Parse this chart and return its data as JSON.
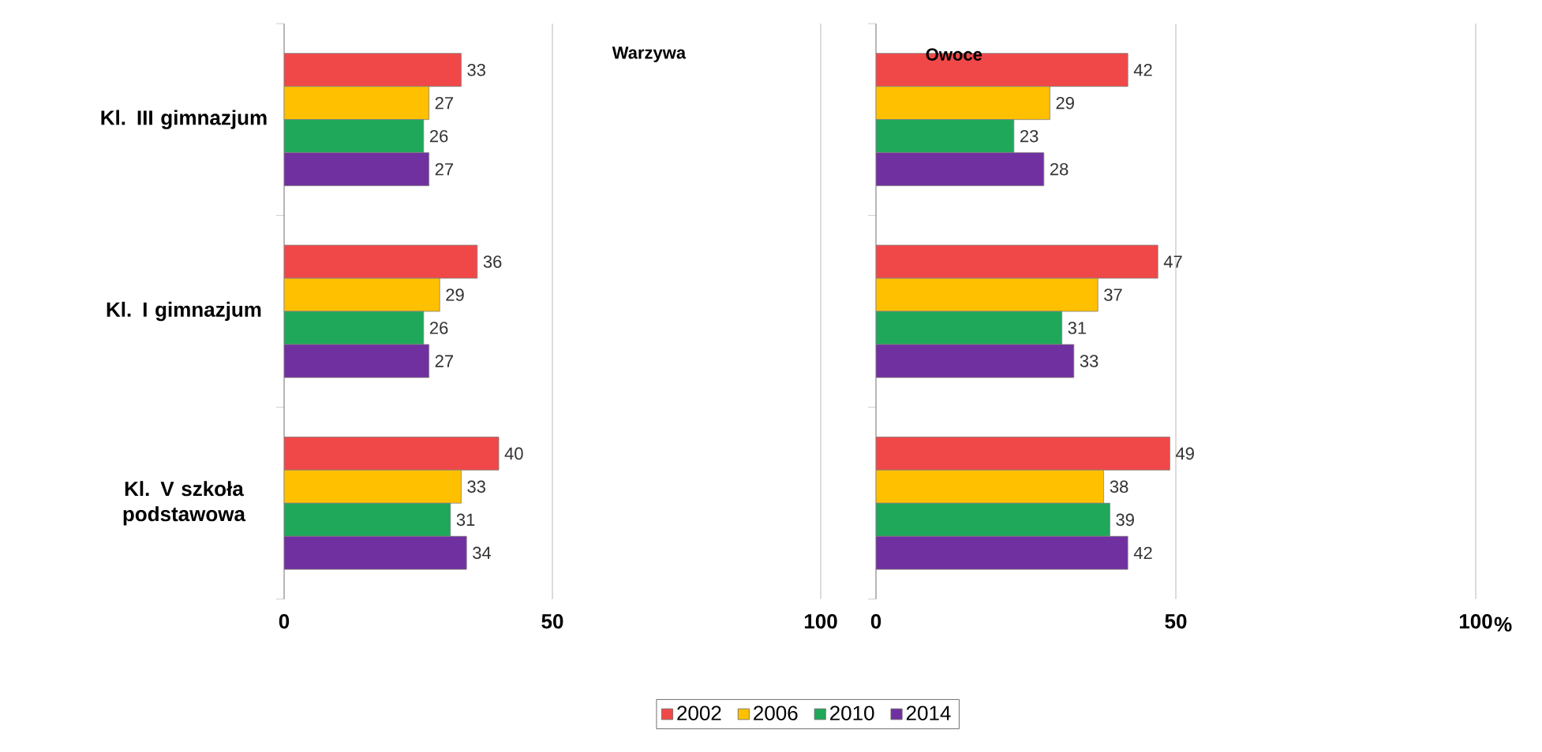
{
  "chart_data": [
    {
      "type": "bar",
      "orientation": "horizontal",
      "title": "Warzywa",
      "categories": [
        "Kl. III gimnazjum",
        "Kl. I   gimnazjum",
        "Kl. V szkoła podstawowa"
      ],
      "series": [
        {
          "name": "2002",
          "color": "#f04848",
          "values": [
            33,
            36,
            40
          ]
        },
        {
          "name": "2006",
          "color": "#ffc000",
          "values": [
            27,
            29,
            33
          ]
        },
        {
          "name": "2010",
          "color": "#1fa85a",
          "values": [
            26,
            26,
            31
          ]
        },
        {
          "name": "2014",
          "color": "#7030a0",
          "values": [
            27,
            27,
            34
          ]
        }
      ],
      "xlim": [
        0,
        100
      ],
      "xticks": [
        0,
        50,
        100
      ],
      "grid": "x",
      "data_labels": true,
      "legend": "bottom"
    },
    {
      "type": "bar",
      "orientation": "horizontal",
      "title": "Owoce",
      "xlabel": "%",
      "categories": [
        null,
        null,
        null
      ],
      "series": [
        {
          "color": "#f04848",
          "values": [
            42,
            47,
            49
          ]
        },
        {
          "color": "#ffc000",
          "values": [
            29,
            37,
            38
          ]
        },
        {
          "color": "#1fa85a",
          "values": [
            23,
            31,
            39
          ]
        },
        {
          "color": "#7030a0",
          "values": [
            28,
            33,
            42
          ]
        }
      ],
      "xlim": [
        0,
        100
      ],
      "xticks": [
        0,
        50,
        100
      ],
      "grid": "x",
      "data_labels": true,
      "tick_labels": "x"
    }
  ]
}
